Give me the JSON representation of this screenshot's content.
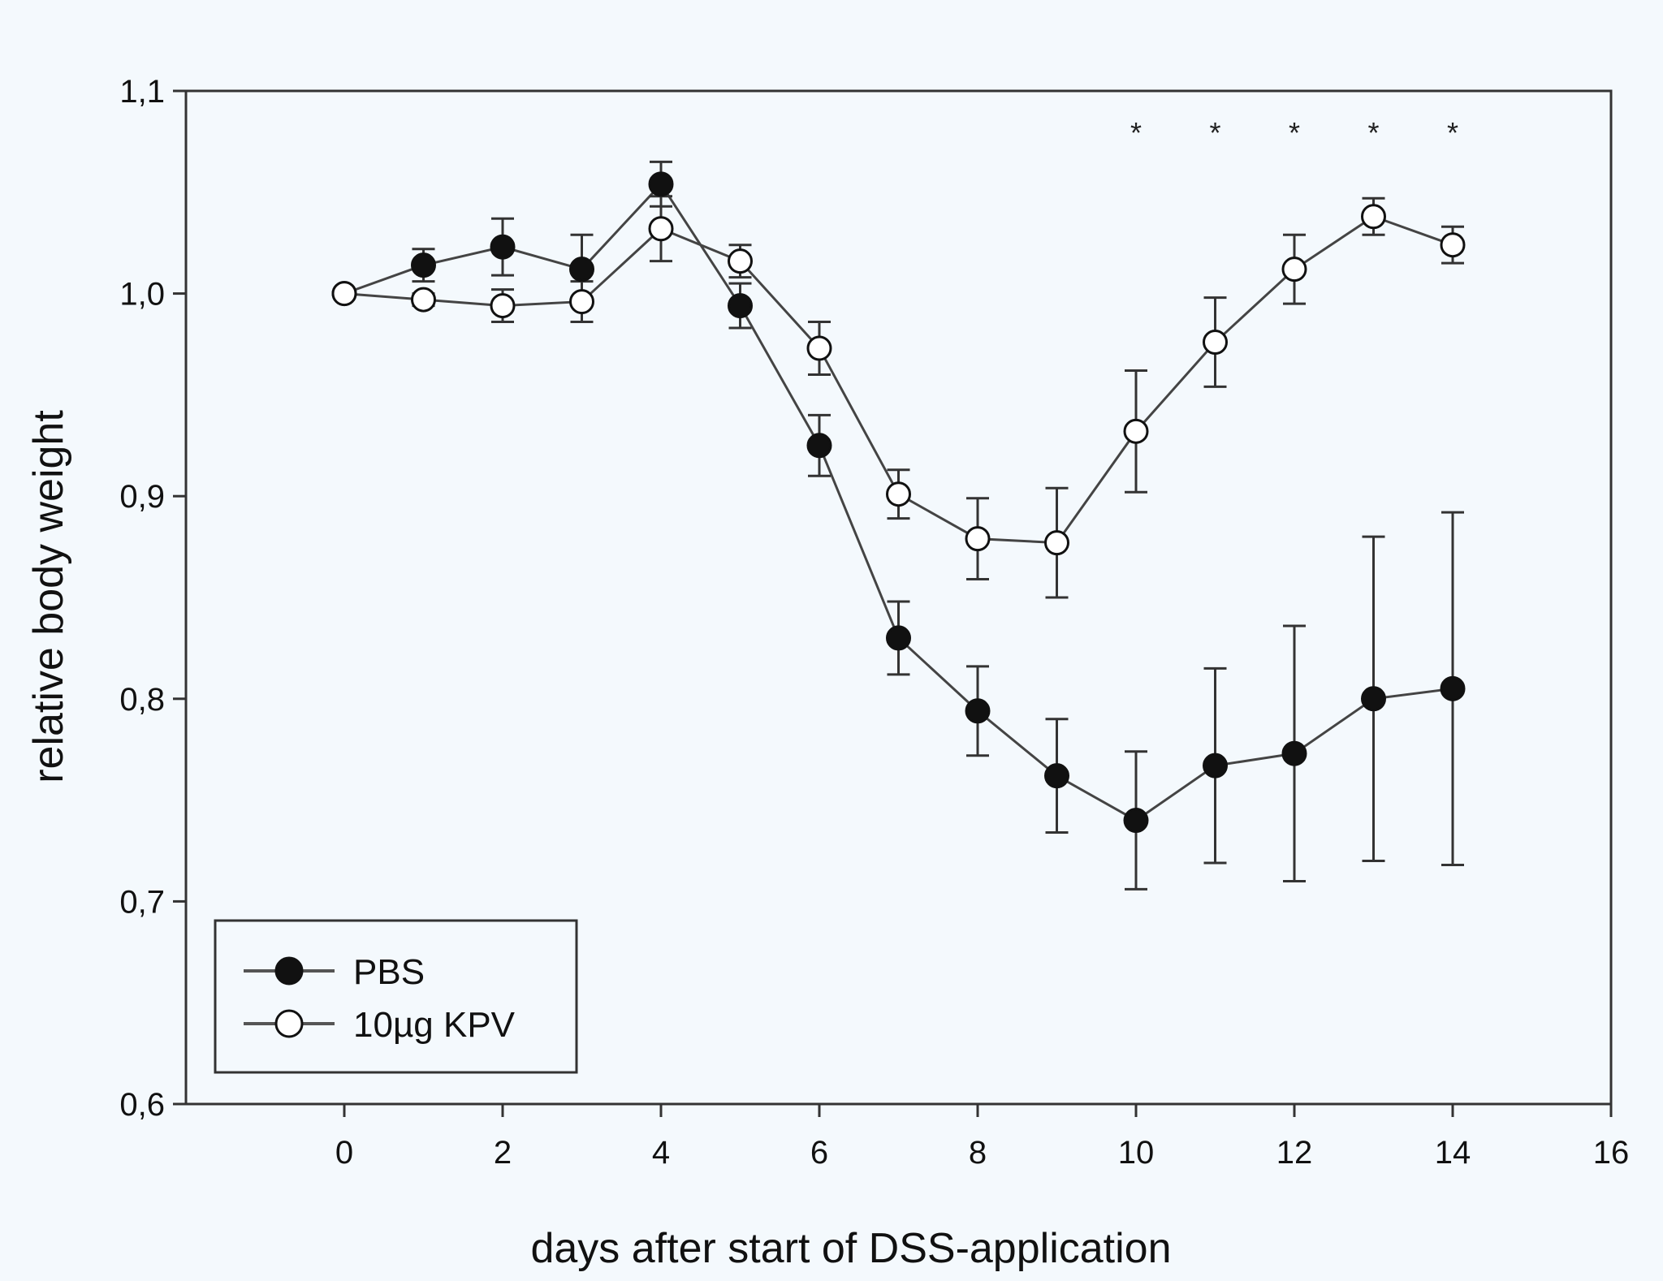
{
  "chart_data": {
    "type": "line",
    "xlabel": "days after start of DSS-application",
    "ylabel": "relative body weight",
    "xlim": [
      -2,
      16
    ],
    "ylim": [
      0.6,
      1.1
    ],
    "x_ticks": [
      0,
      2,
      4,
      6,
      8,
      10,
      12,
      14,
      16
    ],
    "x_tick_labels": [
      "0",
      "2",
      "4",
      "6",
      "8",
      "10",
      "12",
      "14",
      "16"
    ],
    "y_ticks": [
      0.6,
      0.7,
      0.8,
      0.9,
      1.0,
      1.1
    ],
    "y_tick_labels": [
      "0,6",
      "0,7",
      "0,8",
      "0,9",
      "1,0",
      "1,1"
    ],
    "legend_position": "bottom-left",
    "grid": false,
    "series": [
      {
        "name": "PBS",
        "marker": "filled-circle",
        "color": "#111111",
        "x": [
          0,
          1,
          2,
          3,
          4,
          5,
          6,
          7,
          8,
          9,
          10,
          11,
          12,
          13,
          14
        ],
        "y": [
          1.0,
          1.014,
          1.023,
          1.012,
          1.054,
          0.994,
          0.925,
          0.83,
          0.794,
          0.762,
          0.74,
          0.767,
          0.773,
          0.8,
          0.805
        ],
        "err": [
          0,
          0.008,
          0.014,
          0.017,
          0.011,
          0.011,
          0.015,
          0.018,
          0.022,
          0.028,
          0.034,
          0.048,
          0.063,
          0.08,
          0.087
        ]
      },
      {
        "name": "10µg KPV",
        "marker": "open-circle",
        "color": "#111111",
        "x": [
          0,
          1,
          2,
          3,
          4,
          5,
          6,
          7,
          8,
          9,
          10,
          11,
          12,
          13,
          14
        ],
        "y": [
          1.0,
          0.997,
          0.994,
          0.996,
          1.032,
          1.016,
          0.973,
          0.901,
          0.879,
          0.877,
          0.932,
          0.976,
          1.012,
          1.038,
          1.024
        ],
        "err": [
          0,
          0.003,
          0.008,
          0.01,
          0.016,
          0.008,
          0.013,
          0.012,
          0.02,
          0.027,
          0.03,
          0.022,
          0.017,
          0.009,
          0.009
        ]
      }
    ],
    "significance_markers": [
      {
        "x": 10,
        "label": "*"
      },
      {
        "x": 11,
        "label": "*"
      },
      {
        "x": 12,
        "label": "*"
      },
      {
        "x": 13,
        "label": "*"
      },
      {
        "x": 14,
        "label": "*"
      }
    ]
  }
}
